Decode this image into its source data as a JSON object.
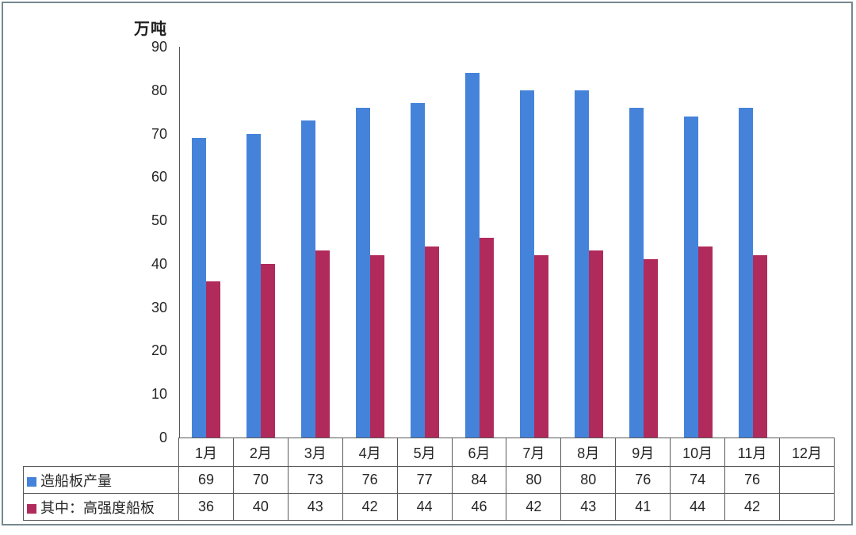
{
  "chart_data": {
    "type": "bar",
    "title": "",
    "ylabel": "万吨",
    "xlabel": "",
    "ylim": [
      0,
      90
    ],
    "yticks": [
      90,
      80,
      70,
      60,
      50,
      40,
      30,
      20,
      10,
      0
    ],
    "grid": false,
    "legend_position": "data-table-left",
    "data_table_shown": true,
    "categories": [
      "1月",
      "2月",
      "3月",
      "4月",
      "5月",
      "6月",
      "7月",
      "8月",
      "9月",
      "10月",
      "11月",
      "12月"
    ],
    "series": [
      {
        "name": "造船板产量",
        "color": "#4583db",
        "values": [
          69,
          70,
          73,
          76,
          77,
          84,
          80,
          80,
          76,
          74,
          76,
          null
        ]
      },
      {
        "name": "其中：高强度船板",
        "color": "#b12a5c",
        "values": [
          36,
          40,
          43,
          42,
          44,
          46,
          42,
          43,
          41,
          44,
          42,
          null
        ]
      }
    ]
  },
  "colors": {
    "frame_border": "#74888f",
    "axis_line": "#595959",
    "table_border": "#595959",
    "text": "#262626",
    "background": "#ffffff"
  }
}
